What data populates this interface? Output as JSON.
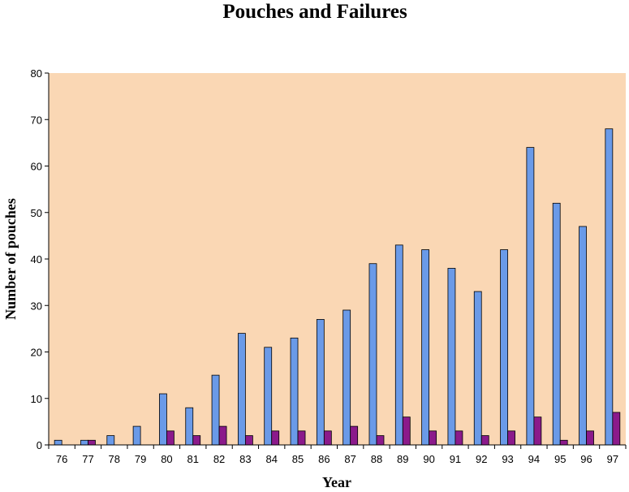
{
  "chart_data": {
    "type": "bar",
    "title": "Pouches and Failures",
    "xlabel": "Year",
    "ylabel": "Number of pouches",
    "ylim": [
      0,
      80
    ],
    "yticks": [
      0,
      10,
      20,
      30,
      40,
      50,
      60,
      70,
      80
    ],
    "categories": [
      "76",
      "77",
      "78",
      "79",
      "80",
      "81",
      "82",
      "83",
      "84",
      "85",
      "86",
      "87",
      "88",
      "89",
      "90",
      "91",
      "92",
      "93",
      "94",
      "95",
      "96",
      "97"
    ],
    "series": [
      {
        "values": [
          1,
          1,
          2,
          4,
          11,
          8,
          15,
          24,
          21,
          23,
          27,
          29,
          39,
          43,
          42,
          38,
          33,
          42,
          64,
          52,
          47,
          68
        ]
      },
      {
        "values": [
          0,
          1,
          0,
          0,
          3,
          2,
          4,
          2,
          3,
          3,
          3,
          4,
          2,
          6,
          3,
          3,
          2,
          3,
          6,
          1,
          3,
          7
        ]
      }
    ],
    "grid": false,
    "legend": "none",
    "colors": {
      "plot_background": "#FAD7B4",
      "series_1": "#6A9AE8",
      "series_2": "#8B1A8B"
    }
  }
}
